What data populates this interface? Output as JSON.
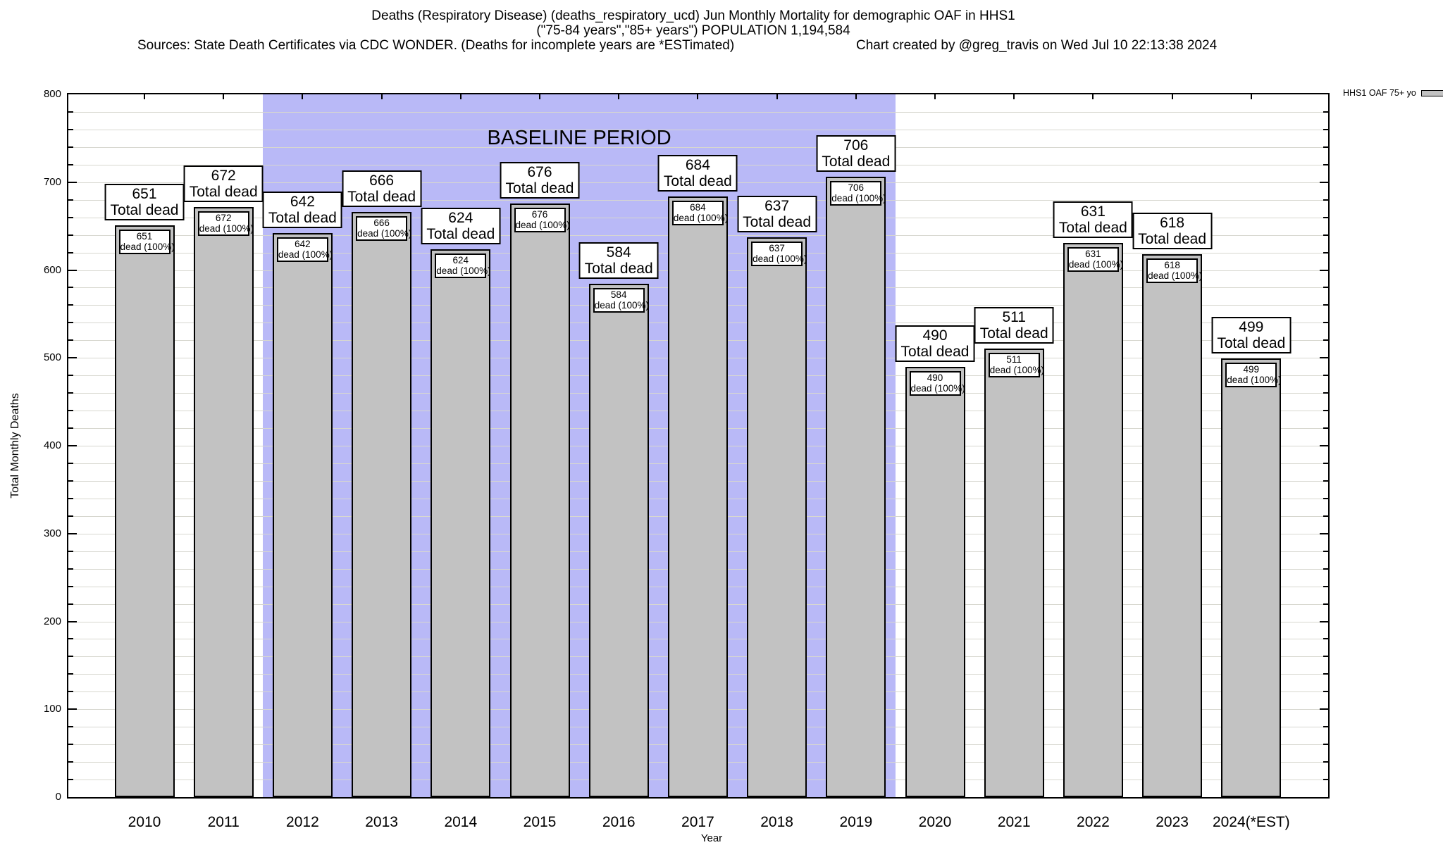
{
  "header": {
    "title_line1": "Deaths (Respiratory Disease) (deaths_respiratory_ucd) Jun Monthly Mortality for demographic OAF in HHS1",
    "title_line2": "(\"75-84 years\",\"85+ years\") POPULATION 1,194,584",
    "sources_note": "Sources: State Death Certificates via CDC WONDER. (Deaths for incomplete years are *ESTimated)",
    "credit": "Chart created by @greg_travis on Wed Jul 10 22:13:38 2024"
  },
  "legend": {
    "label": "HHS1 OAF 75+ yo",
    "swatch_color": "#c2c2c2"
  },
  "chart_data": {
    "type": "bar",
    "title": "Deaths (Respiratory Disease) (deaths_respiratory_ucd) Jun Monthly Mortality for demographic OAF in HHS1",
    "xlabel": "Year",
    "ylabel": "Total Monthly Deaths",
    "ylim": [
      0,
      800
    ],
    "ytick_step": 100,
    "minor_grid_step": 20,
    "grid": true,
    "legend_position": "top-right-outside",
    "categories": [
      "2010",
      "2011",
      "2012",
      "2013",
      "2014",
      "2015",
      "2016",
      "2017",
      "2018",
      "2019",
      "2020",
      "2021",
      "2022",
      "2023",
      "2024(*EST)"
    ],
    "values": [
      651,
      672,
      642,
      666,
      624,
      676,
      584,
      684,
      637,
      706,
      490,
      511,
      631,
      618,
      499
    ],
    "bar_value_sublabel": "Total dead",
    "bar_tag_sublabel": "dead (100%)",
    "baseline_region": {
      "label": "BASELINE PERIOD",
      "start_category": "2012",
      "end_category": "2019",
      "color": "#b9b9f7"
    },
    "colors": {
      "bar_fill": "#c2c2c2",
      "bar_border": "#000000",
      "grid_line": "#d7d7cf",
      "axis": "#000000"
    }
  }
}
